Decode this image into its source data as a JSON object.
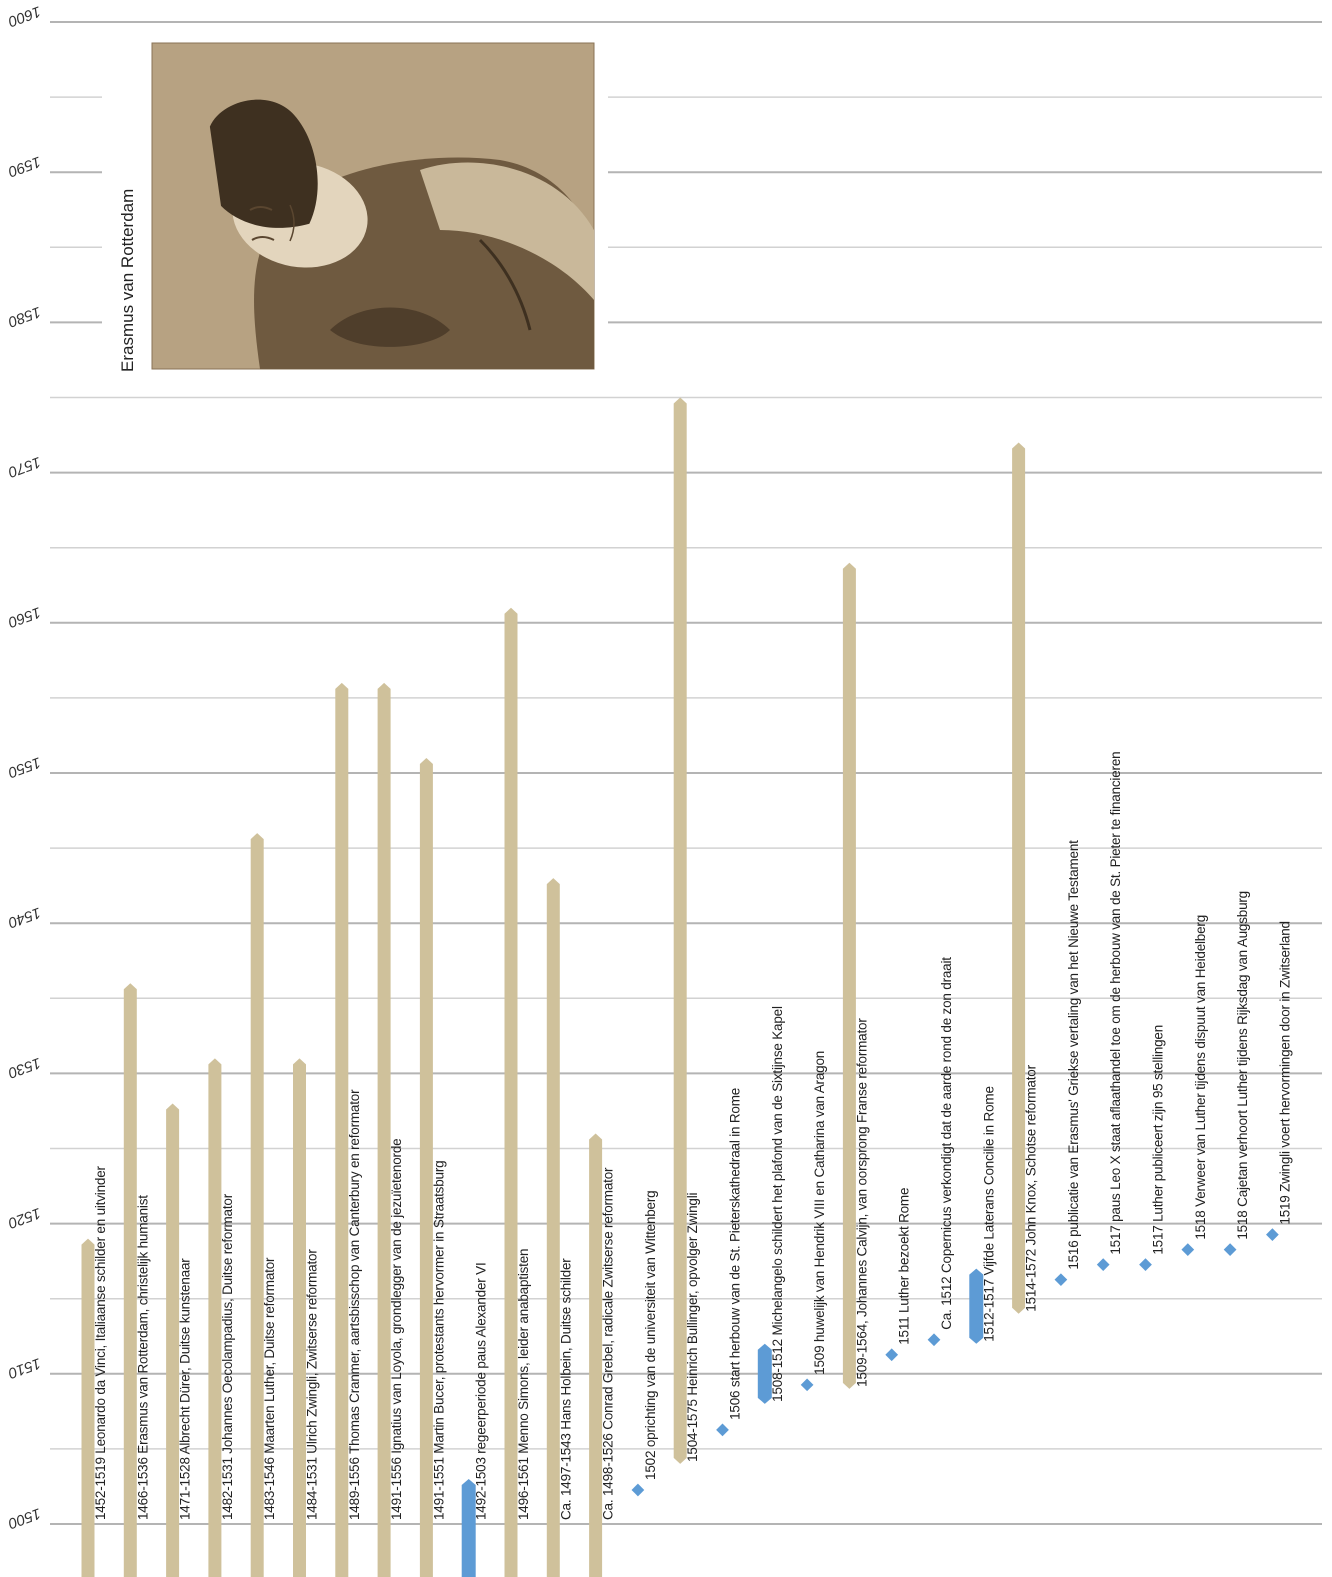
{
  "chart_data": {
    "type": "timeline",
    "title": "",
    "axis": {
      "range": [
        1500,
        1600
      ],
      "ticks": [
        1500,
        1510,
        1520,
        1530,
        1540,
        1550,
        1560,
        1570,
        1580,
        1590,
        1600
      ],
      "grid": true
    },
    "portrait": {
      "caption": "Erasmus van Rotterdam"
    },
    "colors": {
      "person_bar": "#cfc19b",
      "period_bar": "#5d9bd5",
      "event_marker": "#5d9bd5",
      "grid_major": "#b4b4b4",
      "grid_minor": "#d2d2d2",
      "engraving": "#8a7356"
    },
    "entries": [
      {
        "kind": "person",
        "start": 1452,
        "end": 1519,
        "label": "1452-1519 Leonardo da Vinci, Italiaanse schilder en uitvinder"
      },
      {
        "kind": "person",
        "start": 1466,
        "end": 1536,
        "label": "1466-1536 Erasmus van Rotterdam, christelijk humanist"
      },
      {
        "kind": "person",
        "start": 1471,
        "end": 1528,
        "label": "1471-1528 Albrecht Dürer, Duitse kunstenaar"
      },
      {
        "kind": "person",
        "start": 1482,
        "end": 1531,
        "label": "1482-1531 Johannes Oecolampadius, Duitse reformator"
      },
      {
        "kind": "person",
        "start": 1483,
        "end": 1546,
        "label": "1483-1546 Maarten Luther, Duitse reformator"
      },
      {
        "kind": "person",
        "start": 1484,
        "end": 1531,
        "label": "1484-1531 Ulrich Zwingli, Zwitserse reformator"
      },
      {
        "kind": "person",
        "start": 1489,
        "end": 1556,
        "label": "1489-1556 Thomas Cranmer, aartsbisschop van Canterbury en reformator"
      },
      {
        "kind": "person",
        "start": 1491,
        "end": 1556,
        "label": "1491-1556 Ignatius van Loyola, grondlegger van de jezuïetenorde"
      },
      {
        "kind": "person",
        "start": 1491,
        "end": 1551,
        "label": "1491-1551 Martin Bucer, protestants hervormer in Straatsburg"
      },
      {
        "kind": "period",
        "start": 1492,
        "end": 1503,
        "label": "1492-1503  regeerperiode paus Alexander VI"
      },
      {
        "kind": "person",
        "start": 1496,
        "end": 1561,
        "label": "1496-1561 Menno Simons, leider anabaptisten"
      },
      {
        "kind": "person",
        "start": 1497,
        "end": 1543,
        "label": "Ca. 1497-1543 Hans Holbein, Duitse schilder"
      },
      {
        "kind": "person",
        "start": 1498,
        "end": 1526,
        "label": "Ca. 1498-1526 Conrad Grebel, radicale Zwitserse reformator"
      },
      {
        "kind": "event",
        "year": 1502,
        "label": "1502 oprichting van de universiteit van Wittenberg"
      },
      {
        "kind": "person",
        "start": 1504,
        "end": 1575,
        "label": "1504-1575 Heinrich Bullinger, opvolger Zwingli"
      },
      {
        "kind": "event",
        "year": 1506,
        "label": "1506 start herbouw van de St. Pieterskathedraal in Rome"
      },
      {
        "kind": "period",
        "start": 1508,
        "end": 1512,
        "label": "1508-1512 Michelangelo schildert het plafond van de Sixtijnse Kapel"
      },
      {
        "kind": "event",
        "year": 1509,
        "label": "1509 huwelijk van Hendrik VIII en Catharina van Aragon"
      },
      {
        "kind": "person",
        "start": 1509,
        "end": 1564,
        "label": "1509-1564, Johannes Calvijn, van oorsprong Franse reformator"
      },
      {
        "kind": "event",
        "year": 1511,
        "label": "1511 Luther bezoekt Rome"
      },
      {
        "kind": "event",
        "year": 1512,
        "label": "Ca. 1512 Copernicus verkondigt dat de aarde rond de zon draait"
      },
      {
        "kind": "period",
        "start": 1512,
        "end": 1517,
        "label": "1512-1517 Vijfde Laterans Concilie in Rome"
      },
      {
        "kind": "person",
        "start": 1514,
        "end": 1572,
        "label": "1514-1572 John Knox, Schotse reformator"
      },
      {
        "kind": "event",
        "year": 1516,
        "label": "1516 publicatie van Erasmus' Griekse vertaling van het Nieuwe Testament"
      },
      {
        "kind": "event",
        "year": 1517,
        "label": "1517 paus Leo X staat aflaathandel toe om de herbouw van de St. Pieter te financieren"
      },
      {
        "kind": "event",
        "year": 1517,
        "label": "1517 Luther publiceert zijn 95 stellingen"
      },
      {
        "kind": "event",
        "year": 1518,
        "label": "1518 Verweer van Luther tijdens dispuut van Heidelberg"
      },
      {
        "kind": "event",
        "year": 1518,
        "label": "1518 Cajetan verhoort Luther tijdens Rijksdag van Augsburg"
      },
      {
        "kind": "event",
        "year": 1519,
        "label": "1519 Zwingli voert hervormingen door in Zwitserland"
      }
    ]
  }
}
